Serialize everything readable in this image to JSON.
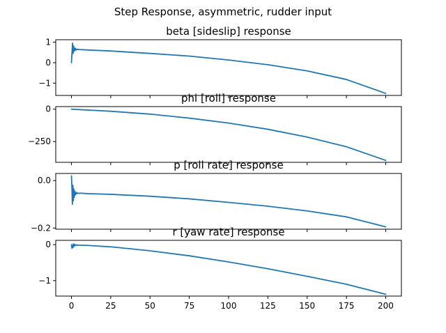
{
  "figure": {
    "suptitle": "Step Response, asymmetric, rudder input"
  },
  "chart_data": [
    {
      "type": "line",
      "title": "beta [sideslip] response",
      "xlabel": "",
      "ylabel": "",
      "xlim": [
        -10,
        210
      ],
      "ylim": [
        -1.6,
        1.12
      ],
      "xticks": [
        0,
        25,
        50,
        75,
        100,
        125,
        150,
        175,
        200
      ],
      "xtick_labels_visible": false,
      "yticks": [
        1,
        0,
        -1
      ],
      "ytick_labels": [
        "1",
        "0",
        "−1"
      ],
      "grid": false,
      "series": [
        {
          "color": "#1f77b4",
          "x": [
            0,
            0.4,
            0.7,
            1.0,
            1.3,
            1.6,
            1.9,
            2.2,
            2.5,
            2.8,
            3.2,
            3.6,
            4,
            5,
            10,
            25,
            50,
            75,
            100,
            125,
            150,
            175,
            200
          ],
          "y": [
            0,
            0.55,
            0.95,
            0.45,
            0.82,
            0.55,
            0.72,
            0.6,
            0.7,
            0.62,
            0.66,
            0.63,
            0.65,
            0.64,
            0.62,
            0.57,
            0.45,
            0.32,
            0.13,
            -0.1,
            -0.4,
            -0.82,
            -1.5
          ]
        }
      ]
    },
    {
      "type": "line",
      "title": "phi [roll] response",
      "xlabel": "",
      "ylabel": "",
      "xlim": [
        -10,
        210
      ],
      "ylim": [
        -410,
        20
      ],
      "xticks": [
        0,
        25,
        50,
        75,
        100,
        125,
        150,
        175,
        200
      ],
      "xtick_labels_visible": false,
      "yticks": [
        0,
        -250
      ],
      "ytick_labels": [
        "0",
        "−250"
      ],
      "grid": false,
      "series": [
        {
          "color": "#1f77b4",
          "x": [
            0,
            25,
            50,
            75,
            100,
            125,
            150,
            175,
            200
          ],
          "y": [
            0,
            -16,
            -38,
            -69,
            -107,
            -155,
            -215,
            -290,
            -395
          ]
        }
      ]
    },
    {
      "type": "line",
      "title": "p [roll rate] response",
      "xlabel": "",
      "ylabel": "",
      "xlim": [
        -10,
        210
      ],
      "ylim": [
        -0.205,
        0.03
      ],
      "xticks": [
        0,
        25,
        50,
        75,
        100,
        125,
        150,
        175,
        200
      ],
      "xtick_labels_visible": false,
      "yticks": [
        0.0,
        -0.2
      ],
      "ytick_labels": [
        "0.0",
        "−0.2"
      ],
      "grid": false,
      "series": [
        {
          "color": "#1f77b4",
          "x": [
            0,
            0.3,
            0.6,
            0.9,
            1.2,
            1.5,
            1.8,
            2.1,
            2.5,
            2.9,
            3.3,
            3.8,
            4.5,
            6,
            10,
            25,
            50,
            75,
            100,
            125,
            150,
            175,
            200
          ],
          "y": [
            0.02,
            -0.03,
            -0.1,
            -0.02,
            -0.085,
            -0.035,
            -0.07,
            -0.045,
            -0.06,
            -0.05,
            -0.055,
            -0.052,
            -0.054,
            -0.053,
            -0.055,
            -0.058,
            -0.066,
            -0.077,
            -0.092,
            -0.108,
            -0.128,
            -0.153,
            -0.195
          ]
        }
      ]
    },
    {
      "type": "line",
      "title": "r [yaw rate] response",
      "xlabel": "",
      "ylabel": "",
      "xlim": [
        -10,
        210
      ],
      "ylim": [
        -1.43,
        0.12
      ],
      "xticks": [
        0,
        25,
        50,
        75,
        100,
        125,
        150,
        175,
        200
      ],
      "xtick_labels": [
        "0",
        "25",
        "50",
        "75",
        "100",
        "125",
        "150",
        "175",
        "200"
      ],
      "xtick_labels_visible": true,
      "yticks": [
        0,
        -1
      ],
      "ytick_labels": [
        "0",
        "−1"
      ],
      "grid": false,
      "series": [
        {
          "color": "#1f77b4",
          "x": [
            0,
            0.3,
            0.6,
            0.9,
            1.2,
            1.5,
            1.8,
            2.2,
            2.7,
            3.3,
            4,
            5,
            10,
            25,
            50,
            75,
            100,
            125,
            150,
            175,
            200
          ],
          "y": [
            0,
            -0.1,
            -0.02,
            -0.08,
            0.02,
            -0.05,
            0.01,
            -0.03,
            0.0,
            -0.02,
            -0.01,
            -0.015,
            -0.02,
            -0.06,
            -0.17,
            -0.31,
            -0.48,
            -0.67,
            -0.88,
            -1.1,
            -1.38
          ]
        }
      ]
    }
  ]
}
